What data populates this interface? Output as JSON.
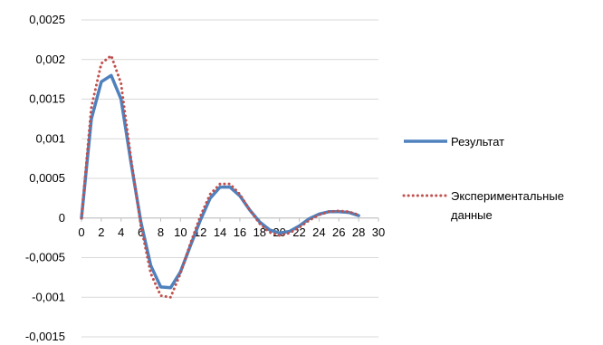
{
  "chart_data": {
    "type": "line",
    "title": "",
    "xlabel": "",
    "ylabel": "",
    "x": [
      0,
      1,
      2,
      3,
      4,
      5,
      6,
      7,
      8,
      9,
      10,
      11,
      12,
      13,
      14,
      15,
      16,
      17,
      18,
      19,
      20,
      21,
      22,
      23,
      24,
      25,
      26,
      27,
      28
    ],
    "x_ticks": [
      "0",
      "2",
      "4",
      "6",
      "8",
      "10",
      "12",
      "14",
      "16",
      "18",
      "20",
      "22",
      "24",
      "26",
      "28",
      "30"
    ],
    "y_ticks": [
      "0,0025",
      "0,002",
      "0,0015",
      "0,001",
      "0,0005",
      "0",
      "-0,0005",
      "-0,001",
      "-0,0015"
    ],
    "ylim": [
      -0.0015,
      0.0025
    ],
    "grid": true,
    "legend_position": "right",
    "series": [
      {
        "name": "Результат",
        "color": "#4f81bd",
        "style": "solid",
        "values": [
          0,
          0.00125,
          0.00172,
          0.0018,
          0.0015,
          0.0007,
          -5e-05,
          -0.0006,
          -0.00087,
          -0.00088,
          -0.00068,
          -0.00035,
          -3e-05,
          0.00025,
          0.00039,
          0.00039,
          0.00028,
          0.0001,
          -5e-05,
          -0.00015,
          -0.00019,
          -0.00017,
          -0.0001,
          -1e-05,
          5e-05,
          8e-05,
          8e-05,
          7e-05,
          3e-05
        ]
      },
      {
        "name": "Экспериментальные данные",
        "name_lines": [
          "Экспериментальные",
          "данные"
        ],
        "color": "#c0504d",
        "style": "dotted",
        "values": [
          0,
          0.0014,
          0.00195,
          0.00205,
          0.0017,
          0.00075,
          -0.0001,
          -0.0007,
          -0.00098,
          -0.001,
          -0.0007,
          -0.00032,
          2e-05,
          0.0003,
          0.00043,
          0.00043,
          0.0003,
          0.0001,
          -7e-05,
          -0.00018,
          -0.00022,
          -0.00019,
          -0.00012,
          -3e-05,
          4e-05,
          8e-05,
          9e-05,
          8e-05,
          4e-05
        ]
      }
    ]
  }
}
